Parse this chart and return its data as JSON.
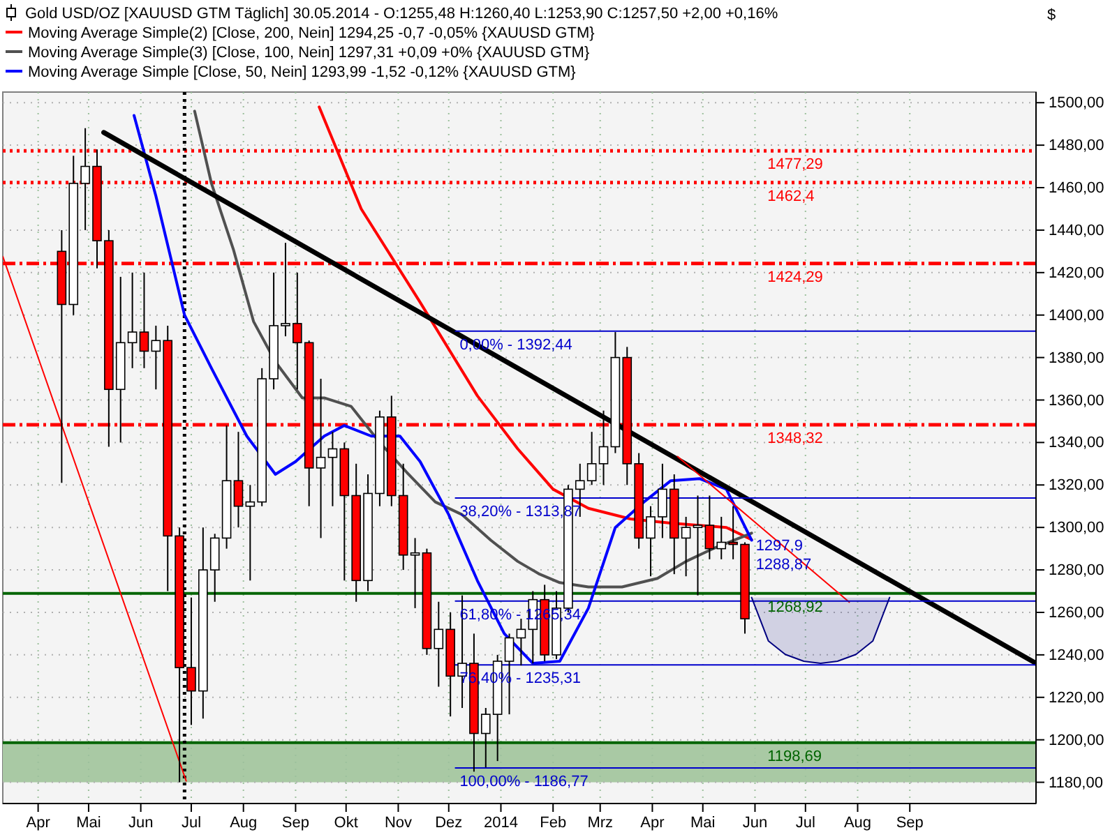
{
  "chart_data": {
    "type": "candlestick",
    "title": "Gold USD/OZ [XAUUSD GTM  Täglich] 30.05.2014 - O:1255,48 H:1260,40 L:1253,90 C:1257,50 +2,00 +0,16%",
    "ylabel": "$",
    "x": [
      "2013-04-15",
      "2013-04-22",
      "2013-04-29",
      "2013-05-06",
      "2013-05-13",
      "2013-05-20",
      "2013-05-27",
      "2013-06-03",
      "2013-06-10",
      "2013-06-17",
      "2013-06-24",
      "2013-07-01",
      "2013-07-08",
      "2013-07-15",
      "2013-07-22",
      "2013-07-29",
      "2013-08-05",
      "2013-08-12",
      "2013-08-19",
      "2013-08-26",
      "2013-09-02",
      "2013-09-09",
      "2013-09-16",
      "2013-09-23",
      "2013-09-30",
      "2013-10-07",
      "2013-10-14",
      "2013-10-21",
      "2013-10-28",
      "2013-11-04",
      "2013-11-11",
      "2013-11-18",
      "2013-11-25",
      "2013-12-02",
      "2013-12-09",
      "2013-12-16",
      "2013-12-23",
      "2013-12-30",
      "2014-01-06",
      "2014-01-13",
      "2014-01-20",
      "2014-01-27",
      "2014-02-03",
      "2014-02-10",
      "2014-02-17",
      "2014-02-24",
      "2014-03-03",
      "2014-03-10",
      "2014-03-17",
      "2014-03-24",
      "2014-03-31",
      "2014-04-07",
      "2014-04-14",
      "2014-04-21",
      "2014-04-28",
      "2014-05-05",
      "2014-05-12",
      "2014-05-19",
      "2014-05-26"
    ],
    "ohlc": [
      [
        1430,
        1440,
        1321,
        1405
      ],
      [
        1405,
        1475,
        1400,
        1462
      ],
      [
        1462,
        1488,
        1440,
        1470
      ],
      [
        1470,
        1478,
        1422,
        1435
      ],
      [
        1435,
        1440,
        1338,
        1365
      ],
      [
        1365,
        1418,
        1340,
        1387
      ],
      [
        1387,
        1420,
        1375,
        1392
      ],
      [
        1392,
        1420,
        1375,
        1383
      ],
      [
        1383,
        1395,
        1365,
        1388
      ],
      [
        1388,
        1395,
        1270,
        1296
      ],
      [
        1296,
        1300,
        1180,
        1234
      ],
      [
        1234,
        1267,
        1207,
        1223
      ],
      [
        1223,
        1300,
        1210,
        1280
      ],
      [
        1280,
        1297,
        1265,
        1295
      ],
      [
        1295,
        1348,
        1290,
        1322
      ],
      [
        1322,
        1345,
        1300,
        1310
      ],
      [
        1310,
        1320,
        1275,
        1312
      ],
      [
        1312,
        1375,
        1310,
        1370
      ],
      [
        1370,
        1420,
        1365,
        1395
      ],
      [
        1395,
        1434,
        1390,
        1396
      ],
      [
        1396,
        1420,
        1365,
        1387
      ],
      [
        1387,
        1388,
        1310,
        1328
      ],
      [
        1328,
        1370,
        1295,
        1333
      ],
      [
        1333,
        1345,
        1310,
        1337
      ],
      [
        1337,
        1340,
        1275,
        1315
      ],
      [
        1315,
        1330,
        1265,
        1275
      ],
      [
        1275,
        1325,
        1270,
        1316
      ],
      [
        1316,
        1355,
        1310,
        1352
      ],
      [
        1352,
        1362,
        1310,
        1315
      ],
      [
        1315,
        1330,
        1280,
        1287
      ],
      [
        1287,
        1295,
        1262,
        1288
      ],
      [
        1288,
        1290,
        1240,
        1243
      ],
      [
        1243,
        1265,
        1225,
        1252
      ],
      [
        1252,
        1260,
        1211,
        1230
      ],
      [
        1230,
        1268,
        1215,
        1236
      ],
      [
        1236,
        1250,
        1185,
        1203
      ],
      [
        1203,
        1215,
        1187,
        1212
      ],
      [
        1212,
        1240,
        1190,
        1237
      ],
      [
        1237,
        1250,
        1212,
        1248
      ],
      [
        1248,
        1257,
        1235,
        1252
      ],
      [
        1252,
        1270,
        1236,
        1266
      ],
      [
        1266,
        1273,
        1237,
        1240
      ],
      [
        1240,
        1270,
        1238,
        1262
      ],
      [
        1262,
        1320,
        1260,
        1318
      ],
      [
        1318,
        1330,
        1305,
        1322
      ],
      [
        1322,
        1345,
        1320,
        1330
      ],
      [
        1330,
        1355,
        1320,
        1338
      ],
      [
        1338,
        1392,
        1335,
        1380
      ],
      [
        1380,
        1385,
        1320,
        1330
      ],
      [
        1330,
        1335,
        1290,
        1295
      ],
      [
        1295,
        1310,
        1277,
        1305
      ],
      [
        1305,
        1330,
        1295,
        1318
      ],
      [
        1318,
        1325,
        1278,
        1295
      ],
      [
        1295,
        1305,
        1277,
        1300
      ],
      [
        1300,
        1315,
        1268,
        1301
      ],
      [
        1301,
        1315,
        1285,
        1290
      ],
      [
        1290,
        1305,
        1285,
        1293
      ],
      [
        1293,
        1310,
        1285,
        1292
      ],
      [
        1292,
        1293,
        1250,
        1257
      ]
    ],
    "series": [
      {
        "type": "line",
        "name": "Moving Average Simple(2) [Close, 200, Nein] 1294,25 -0,7 -0,05% {XAUUSD GTM}",
        "color": "#ff0000",
        "x": [
          "2013-09-15",
          "2013-10-10",
          "2013-11-14",
          "2013-12-18",
          "2014-01-11",
          "2014-02-01",
          "2014-02-22",
          "2014-03-19",
          "2014-04-12",
          "2014-05-15",
          "2014-05-30"
        ],
        "values": [
          1498,
          1450,
          1406,
          1362,
          1337,
          1318,
          1309,
          1304,
          1302,
          1300,
          1294.25
        ]
      },
      {
        "type": "line",
        "name": "Moving Average Simple(3) [Close, 100, Nein] 1297,31 +0,09 +0% {XAUUSD GTM}",
        "color": "#505050",
        "x": [
          "2013-07-03",
          "2013-07-13",
          "2013-07-26",
          "2013-08-07",
          "2013-08-20",
          "2013-09-05",
          "2013-09-18",
          "2013-10-04",
          "2013-10-21",
          "2013-11-06",
          "2013-11-23",
          "2013-12-09",
          "2013-12-26",
          "2014-01-11",
          "2014-01-24",
          "2014-02-05",
          "2014-02-22",
          "2014-03-14",
          "2014-04-04",
          "2014-04-21",
          "2014-05-07",
          "2014-05-30"
        ],
        "values": [
          1496,
          1462,
          1431,
          1397,
          1378,
          1361,
          1361,
          1357,
          1340,
          1326,
          1312,
          1306,
          1294,
          1284,
          1278,
          1274,
          1272,
          1272,
          1276,
          1284,
          1290,
          1297.31
        ]
      },
      {
        "type": "line",
        "name": "Moving Average Simple [Close, 50, Nein] 1293,99 -1,52 -0,12% {XAUUSD GTM}",
        "color": "#0000ff",
        "x": [
          "2013-05-28",
          "2013-06-10",
          "2013-06-27",
          "2013-07-13",
          "2013-08-03",
          "2013-08-20",
          "2013-09-01",
          "2013-09-18",
          "2013-09-30",
          "2013-10-16",
          "2013-11-02",
          "2013-11-14",
          "2013-12-01",
          "2013-12-18",
          "2014-01-03",
          "2014-01-20",
          "2014-02-05",
          "2014-02-22",
          "2014-03-10",
          "2014-03-27",
          "2014-04-12",
          "2014-04-29",
          "2014-05-15",
          "2014-05-30"
        ],
        "values": [
          1494,
          1456,
          1400,
          1375,
          1343,
          1325,
          1331,
          1343,
          1348,
          1343,
          1343,
          1331,
          1306,
          1275,
          1250,
          1236,
          1237,
          1262,
          1300,
          1312,
          1322,
          1323,
          1318,
          1293.99
        ]
      },
      {
        "type": "line",
        "color": "#000000",
        "x": [
          "2013-05-10",
          "2014-11-15"
        ],
        "values": [
          1486,
          1236
        ]
      },
      {
        "type": "line",
        "color": "#ff0000",
        "x": [
          "2013-03-11",
          "2013-06-28"
        ],
        "values": [
          1427.6,
          1180.6
        ]
      },
      {
        "type": "line",
        "color": "#ff0000",
        "x": [
          "2014-04-16",
          "2014-07-27"
        ],
        "values": [
          1333.4,
          1264.8
        ]
      },
      {
        "type": "line",
        "color": "#0000cc",
        "x": [
          "2013-12-05",
          "2014-11-15"
        ],
        "values": [
          1392.44,
          1392.44
        ]
      },
      {
        "type": "line",
        "color": "#0000cc",
        "x": [
          "2013-12-05",
          "2014-11-15"
        ],
        "values": [
          1313.87,
          1313.87
        ]
      },
      {
        "type": "line",
        "color": "#0000cc",
        "x": [
          "2013-12-05",
          "2014-11-15"
        ],
        "values": [
          1265.34,
          1265.34
        ]
      },
      {
        "type": "line",
        "color": "#0000cc",
        "x": [
          "2013-12-05",
          "2014-11-15"
        ],
        "values": [
          1235.31,
          1235.31
        ]
      },
      {
        "type": "line",
        "color": "#0000cc",
        "x": [
          "2013-12-05",
          "2014-11-15"
        ],
        "values": [
          1186.77,
          1186.77
        ]
      },
      {
        "type": "line",
        "color": "#000080",
        "x": [
          "2014-05-30",
          "2014-06-09",
          "2014-06-19",
          "2014-06-30",
          "2014-07-10",
          "2014-07-20",
          "2014-07-31",
          "2014-08-10",
          "2014-08-20"
        ],
        "values": [
          1267,
          1246.5,
          1240.2,
          1237,
          1236,
          1237,
          1240.2,
          1246.5,
          1267
        ],
        "lower": [
          1267,
          1246.5,
          1240.2,
          1237,
          1236,
          1237,
          1240.2,
          1246.5,
          1267
        ],
        "upper": [
          1267,
          1267,
          1267,
          1267,
          1267,
          1267,
          1267,
          1267,
          1267
        ]
      }
    ],
    "ref_lines": [
      {
        "axis": "y",
        "value": 1477.29,
        "label": "1477,29",
        "color": "#ff0000",
        "line_style": "dotted"
      },
      {
        "axis": "y",
        "value": 1462.4,
        "label": "1462,4",
        "color": "#ff0000",
        "line_style": "dotted"
      },
      {
        "axis": "y",
        "value": 1424.29,
        "label": "1424,29",
        "color": "#ff0000",
        "line_style": "dashed"
      },
      {
        "axis": "y",
        "value": 1348.32,
        "label": "1348,32",
        "color": "#ff0000",
        "line_style": "dashed"
      },
      {
        "axis": "y",
        "value": 1268.92,
        "label": "1268,92",
        "color": "#006400",
        "line_style": "solid"
      },
      {
        "axis": "y",
        "value": 1198.69,
        "label": "1198,69",
        "color": "#006400",
        "line_style": "solid"
      },
      {
        "axis": "x",
        "value": "2013-06-27",
        "color": "#000000",
        "line_style": "dotted"
      }
    ],
    "bands": [
      {
        "axis": "y",
        "from": 1180,
        "to": 1198.69,
        "color": "#a9c9a4"
      }
    ],
    "annotations": [
      {
        "text": "0,00% - 1392,44",
        "x": "2013-12-05",
        "y": 1392.44
      },
      {
        "text": "38,20% - 1313,87",
        "x": "2013-12-05",
        "y": 1313.87
      },
      {
        "text": "61,80% - 1265,34",
        "x": "2013-12-05",
        "y": 1265.34
      },
      {
        "text": "76,40% - 1235,31",
        "x": "2013-12-05",
        "y": 1235.31
      },
      {
        "text": "100,00% - 1186,77",
        "x": "2013-12-05",
        "y": 1186.77
      },
      {
        "text": "1297,9",
        "x": "2014-05-30",
        "y": 1297.9
      },
      {
        "text": "1288,87",
        "x": "2014-05-30",
        "y": 1288.87
      }
    ],
    "xlim": [
      "2013-03-11",
      "2014-11-15"
    ],
    "xticks": [
      {
        "value": "2013-04-01",
        "label": "Apr"
      },
      {
        "value": "2013-05-01",
        "label": "Mai"
      },
      {
        "value": "2013-06-01",
        "label": "Jun"
      },
      {
        "value": "2013-07-01",
        "label": "Jul"
      },
      {
        "value": "2013-08-01",
        "label": "Aug"
      },
      {
        "value": "2013-09-01",
        "label": "Sep"
      },
      {
        "value": "2013-10-01",
        "label": "Okt"
      },
      {
        "value": "2013-11-01",
        "label": "Nov"
      },
      {
        "value": "2013-12-01",
        "label": "Dez"
      },
      {
        "value": "2014-01-01",
        "label": "2014"
      },
      {
        "value": "2014-02-01",
        "label": "Feb"
      },
      {
        "value": "2014-03-01",
        "label": "Mrz"
      },
      {
        "value": "2014-04-01",
        "label": "Apr"
      },
      {
        "value": "2014-05-01",
        "label": "Mai"
      },
      {
        "value": "2014-06-01",
        "label": "Jun"
      },
      {
        "value": "2014-07-01",
        "label": "Jul"
      },
      {
        "value": "2014-08-01",
        "label": "Aug"
      },
      {
        "value": "2014-09-01",
        "label": "Sep"
      }
    ],
    "ylim": [
      1170,
      1505
    ],
    "yticks": [
      {
        "value": 1180,
        "label": "1180,00"
      },
      {
        "value": 1200,
        "label": "1200,00"
      },
      {
        "value": 1220,
        "label": "1220,00"
      },
      {
        "value": 1240,
        "label": "1240,00"
      },
      {
        "value": 1260,
        "label": "1260,00"
      },
      {
        "value": 1280,
        "label": "1280,00"
      },
      {
        "value": 1300,
        "label": "1300,00"
      },
      {
        "value": 1320,
        "label": "1320,00"
      },
      {
        "value": 1340,
        "label": "1340,00"
      },
      {
        "value": 1360,
        "label": "1360,00"
      },
      {
        "value": 1380,
        "label": "1380,00"
      },
      {
        "value": 1400,
        "label": "1400,00"
      },
      {
        "value": 1420,
        "label": "1420,00"
      },
      {
        "value": 1440,
        "label": "1440,00"
      },
      {
        "value": 1460,
        "label": "1460,00"
      },
      {
        "value": 1480,
        "label": "1480,00"
      },
      {
        "value": 1500,
        "label": "1500,00"
      }
    ],
    "grid": true,
    "legend": "top left"
  }
}
